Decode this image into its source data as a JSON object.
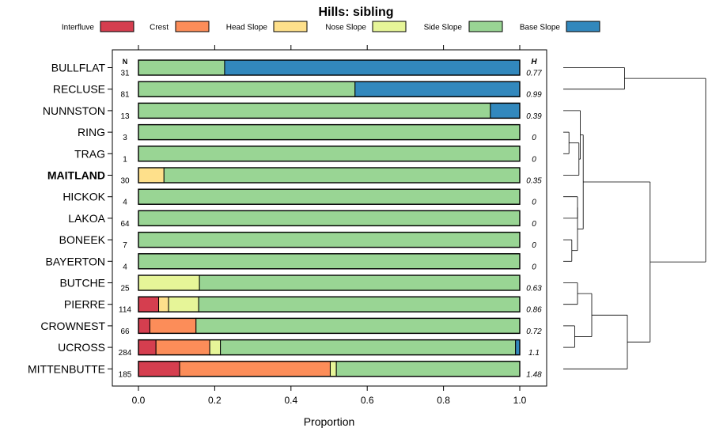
{
  "chart_data": {
    "type": "bar",
    "orientation": "horizontal",
    "stacked": true,
    "title": "Hills: sibling",
    "xlabel": "Proportion",
    "xlim": [
      0,
      1
    ],
    "x_ticks": [
      "0.0",
      "0.2",
      "0.4",
      "0.6",
      "0.8",
      "1.0"
    ],
    "n_header": "N",
    "h_header": "H",
    "legend_position": "top",
    "series": [
      {
        "name": "Interfluve",
        "color": "#d53e4f"
      },
      {
        "name": "Crest",
        "color": "#fc8d59"
      },
      {
        "name": "Head Slope",
        "color": "#fee08b"
      },
      {
        "name": "Nose Slope",
        "color": "#e6f598"
      },
      {
        "name": "Side Slope",
        "color": "#99d594"
      },
      {
        "name": "Base Slope",
        "color": "#3288bd"
      }
    ],
    "categories": [
      {
        "label": "BULLFLAT",
        "n": "31",
        "h": "0.77",
        "bold": false,
        "values": [
          0,
          0,
          0,
          0,
          0.226,
          0.774
        ]
      },
      {
        "label": "RECLUSE",
        "n": "81",
        "h": "0.99",
        "bold": false,
        "values": [
          0,
          0,
          0,
          0,
          0.568,
          0.432
        ]
      },
      {
        "label": "NUNNSTON",
        "n": "13",
        "h": "0.39",
        "bold": false,
        "values": [
          0,
          0,
          0,
          0,
          0.923,
          0.077
        ]
      },
      {
        "label": "RING",
        "n": "3",
        "h": "0",
        "bold": false,
        "values": [
          0,
          0,
          0,
          0,
          1,
          0
        ]
      },
      {
        "label": "TRAG",
        "n": "1",
        "h": "0",
        "bold": false,
        "values": [
          0,
          0,
          0,
          0,
          1,
          0
        ]
      },
      {
        "label": "MAITLAND",
        "n": "30",
        "h": "0.35",
        "bold": true,
        "values": [
          0,
          0,
          0.067,
          0,
          0.933,
          0
        ]
      },
      {
        "label": "HICKOK",
        "n": "4",
        "h": "0",
        "bold": false,
        "values": [
          0,
          0,
          0,
          0,
          1,
          0
        ]
      },
      {
        "label": "LAKOA",
        "n": "64",
        "h": "0",
        "bold": false,
        "values": [
          0,
          0,
          0,
          0,
          1,
          0
        ]
      },
      {
        "label": "BONEEK",
        "n": "7",
        "h": "0",
        "bold": false,
        "values": [
          0,
          0,
          0,
          0,
          1,
          0
        ]
      },
      {
        "label": "BAYERTON",
        "n": "4",
        "h": "0",
        "bold": false,
        "values": [
          0,
          0,
          0,
          0,
          1,
          0
        ]
      },
      {
        "label": "BUTCHE",
        "n": "25",
        "h": "0.63",
        "bold": false,
        "values": [
          0,
          0,
          0,
          0.16,
          0.84,
          0
        ]
      },
      {
        "label": "PIERRE",
        "n": "114",
        "h": "0.86",
        "bold": false,
        "values": [
          0.053,
          0.0,
          0.026,
          0.079,
          0.842,
          0
        ]
      },
      {
        "label": "CROWNEST",
        "n": "66",
        "h": "0.72",
        "bold": false,
        "values": [
          0.03,
          0.121,
          0,
          0,
          0.849,
          0
        ]
      },
      {
        "label": "UCROSS",
        "n": "284",
        "h": "1.1",
        "bold": false,
        "values": [
          0.046,
          0.141,
          0,
          0.028,
          0.774,
          0.011
        ]
      },
      {
        "label": "MITTENBUTTE",
        "n": "185",
        "h": "1.48",
        "bold": false,
        "values": [
          0.108,
          0.395,
          0,
          0.016,
          0.481,
          0
        ]
      }
    ]
  }
}
